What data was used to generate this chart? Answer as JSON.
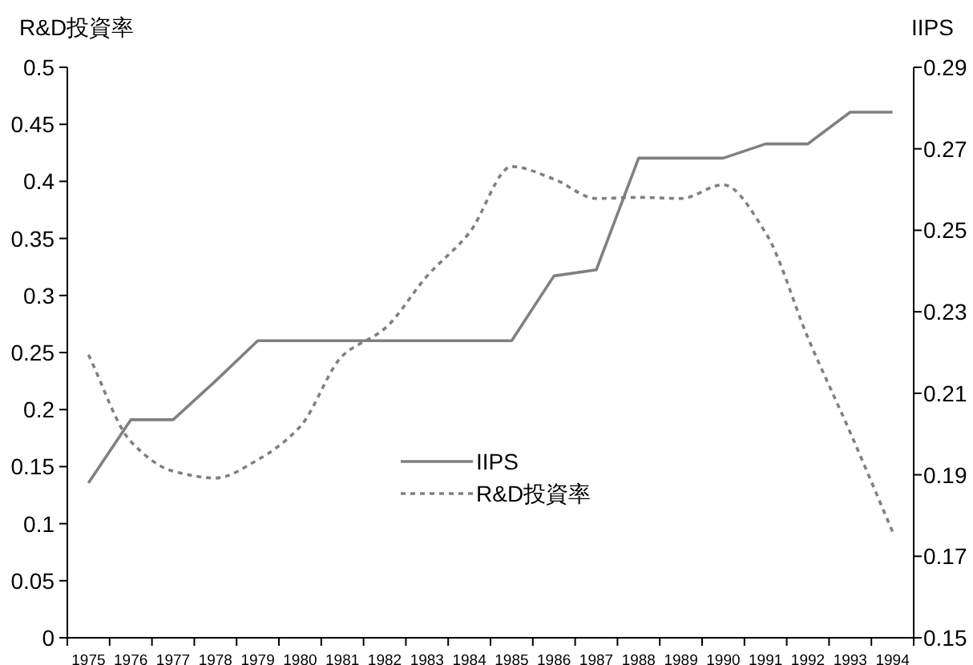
{
  "chart_data": {
    "type": "line",
    "ylabel": "R&D投資率",
    "y2label": "IIPS",
    "categories": [
      "1975",
      "1976",
      "1977",
      "1978",
      "1979",
      "1980",
      "1981",
      "1982",
      "1983",
      "1984",
      "1985",
      "1986",
      "1987",
      "1988",
      "1989",
      "1990",
      "1991",
      "1992",
      "1993",
      "1994"
    ],
    "series": [
      {
        "name": "IIPS",
        "color": "#808080",
        "axis": "y2",
        "line_style": "solid",
        "values": [
          0.188,
          0.2035,
          0.2035,
          0.213,
          0.2229,
          0.2229,
          0.2229,
          0.2229,
          0.2229,
          0.2229,
          0.2229,
          0.2388,
          0.2403,
          0.2677,
          0.2677,
          0.2677,
          0.2712,
          0.2712,
          0.279,
          0.279
        ]
      },
      {
        "name": "R&D投資率",
        "color": "#808080",
        "line_style": "dotted",
        "values": [
          0.248,
          0.172,
          0.146,
          0.14,
          0.156,
          0.185,
          0.247,
          0.271,
          0.317,
          0.355,
          0.413,
          0.402,
          0.385,
          0.386,
          0.385,
          0.397,
          0.355,
          0.263,
          0.18,
          0.093
        ]
      }
    ],
    "ylim": [
      0,
      0.5
    ],
    "yticks": [
      0,
      0.05,
      0.1,
      0.15,
      0.2,
      0.25,
      0.3,
      0.35,
      0.4,
      0.45,
      0.5
    ],
    "y2lim": [
      0.15,
      0.29
    ],
    "y2ticks": [
      0.15,
      0.17,
      0.19,
      0.21,
      0.23,
      0.25,
      0.27,
      0.29
    ],
    "legend": "center",
    "grid": false
  }
}
